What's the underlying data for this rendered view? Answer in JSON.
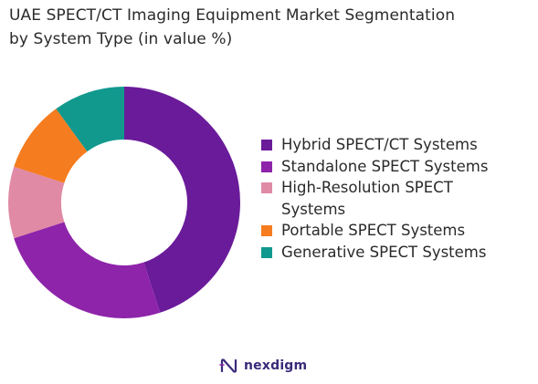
{
  "chart_data": {
    "type": "donut",
    "title_lines": [
      "UAE SPECT/CT Imaging Equipment Market Segmentation",
      "by System Type (in value %)"
    ],
    "series": [
      {
        "name": "Hybrid SPECT/CT Systems",
        "value": 45,
        "color": "#6a1b9a"
      },
      {
        "name": "Standalone SPECT Systems",
        "value": 25,
        "color": "#8e24aa"
      },
      {
        "name": "High-Resolution SPECT Systems",
        "value": 10,
        "color": "#e08aa6"
      },
      {
        "name": "Portable SPECT Systems",
        "value": 10,
        "color": "#f57c1f"
      },
      {
        "name": "Generative SPECT Systems",
        "value": 10,
        "color": "#11998e"
      }
    ],
    "legend_position": "right"
  },
  "legend_labels": [
    "Hybrid SPECT/CT Systems",
    "Standalone SPECT Systems",
    "High-Resolution SPECT\nSystems",
    "Portable SPECT Systems",
    "Generative SPECT Systems"
  ],
  "brand": {
    "name": "nexdigm",
    "color": "#3b2a7a"
  }
}
